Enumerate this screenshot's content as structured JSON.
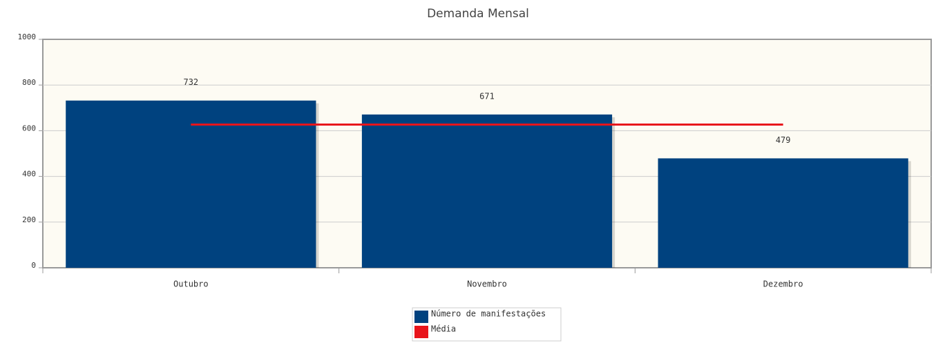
{
  "chart_data": {
    "type": "bar",
    "title": "Demanda Mensal",
    "categories": [
      "Outubro",
      "Novembro",
      "Dezembro"
    ],
    "series": [
      {
        "name": "Número de manifestações",
        "color": "#00427f",
        "type": "bar",
        "values": [
          732,
          671,
          479
        ]
      },
      {
        "name": "Média",
        "color": "#e8141b",
        "type": "line",
        "values": [
          627,
          627,
          627
        ]
      }
    ],
    "ylim": [
      0,
      1000
    ],
    "yticks": [
      0,
      200,
      400,
      600,
      800,
      1000
    ],
    "grid": true,
    "legend": "bottom"
  }
}
